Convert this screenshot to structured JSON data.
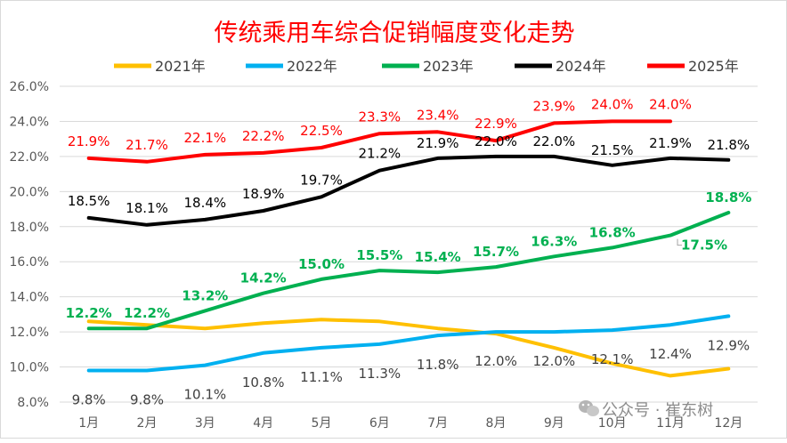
{
  "chart_data": {
    "type": "line",
    "title": "传统乘用车综合促销幅度变化走势",
    "xlabel": "",
    "ylabel": "",
    "categories": [
      "1月",
      "2月",
      "3月",
      "4月",
      "5月",
      "6月",
      "7月",
      "8月",
      "9月",
      "10月",
      "11月",
      "12月"
    ],
    "ylim": [
      8.0,
      26.0
    ],
    "yticks": [
      "8.0%",
      "10.0%",
      "12.0%",
      "14.0%",
      "16.0%",
      "18.0%",
      "20.0%",
      "22.0%",
      "24.0%",
      "26.0%"
    ],
    "grid": true,
    "legend_position": "top",
    "series": [
      {
        "name": "2021年",
        "color": "#FFC000",
        "label_color": "#000000",
        "show_labels": false,
        "values": [
          12.6,
          12.4,
          12.2,
          12.5,
          12.7,
          12.6,
          12.2,
          11.9,
          11.1,
          10.2,
          9.5,
          9.9
        ],
        "labels": []
      },
      {
        "name": "2022年",
        "color": "#00B0F0",
        "label_color": "#404040",
        "show_labels": true,
        "values": [
          9.8,
          9.8,
          10.1,
          10.8,
          11.1,
          11.3,
          11.8,
          12.0,
          12.0,
          12.1,
          12.4,
          12.9
        ],
        "labels": [
          "9.8%",
          "9.8%",
          "10.1%",
          "10.8%",
          "11.1%",
          "11.3%",
          "11.8%",
          "12.0%",
          "12.0%",
          "12.1%",
          "12.4%",
          "12.9%"
        ]
      },
      {
        "name": "2023年",
        "color": "#00B050",
        "label_color": "#00B050",
        "show_labels": true,
        "values": [
          12.2,
          12.2,
          13.2,
          14.2,
          15.0,
          15.5,
          15.4,
          15.7,
          16.3,
          16.8,
          17.5,
          18.8
        ],
        "labels": [
          "12.2%",
          "12.2%",
          "13.2%",
          "14.2%",
          "15.0%",
          "15.5%",
          "15.4%",
          "15.7%",
          "16.3%",
          "16.8%",
          "17.5%",
          "18.8%"
        ]
      },
      {
        "name": "2024年",
        "color": "#000000",
        "label_color": "#000000",
        "show_labels": true,
        "values": [
          18.5,
          18.1,
          18.4,
          18.9,
          19.7,
          21.2,
          21.9,
          22.0,
          22.0,
          21.5,
          21.9,
          21.8
        ],
        "labels": [
          "18.5%",
          "18.1%",
          "18.4%",
          "18.9%",
          "19.7%",
          "21.2%",
          "21.9%",
          "22.0%",
          "22.0%",
          "21.5%",
          "21.9%",
          "21.8%"
        ]
      },
      {
        "name": "2025年",
        "color": "#FF0000",
        "label_color": "#FF0000",
        "show_labels": true,
        "values": [
          21.9,
          21.7,
          22.1,
          22.2,
          22.5,
          23.3,
          23.4,
          22.9,
          23.9,
          24.0,
          24.0,
          null
        ],
        "labels": [
          "21.9%",
          "21.7%",
          "22.1%",
          "22.2%",
          "22.5%",
          "23.3%",
          "23.4%",
          "22.9%",
          "23.9%",
          "24.0%",
          "24.0%",
          ""
        ]
      }
    ]
  },
  "watermark": "公众号 · 崔东树"
}
